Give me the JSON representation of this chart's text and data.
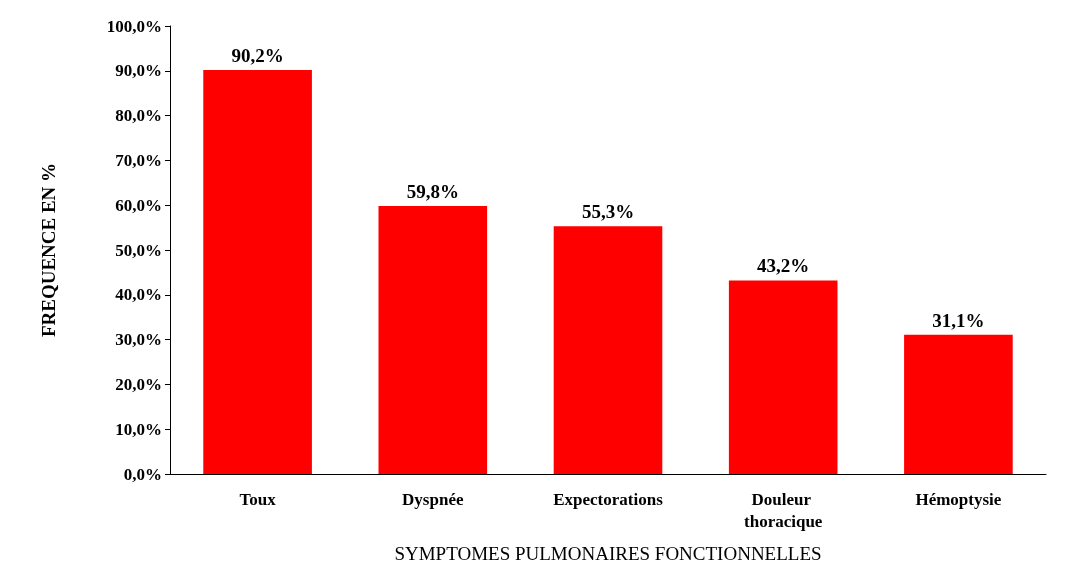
{
  "chart_data": {
    "type": "bar",
    "xlabel": "SYMPTOMES PULMONAIRES FONCTIONNELLES",
    "ylabel": "FREQUENCE EN %",
    "categories": [
      "Toux",
      "Dyspnée",
      "Expectorations",
      "Douleur thoracique",
      "Hémoptysie"
    ],
    "values": [
      90.2,
      59.8,
      55.3,
      43.2,
      31.1
    ],
    "value_labels": [
      "90,2%",
      "59,8%",
      "55,3%",
      "43,2%",
      "31,1%"
    ],
    "color": "#ff0000",
    "ylim": [
      0,
      100
    ],
    "yticks": [
      {
        "value": 0,
        "label": "0,0%"
      },
      {
        "value": 10,
        "label": "10,0%"
      },
      {
        "value": 20,
        "label": "20,0%"
      },
      {
        "value": 30,
        "label": "30,0%"
      },
      {
        "value": 40,
        "label": "40,0%"
      },
      {
        "value": 50,
        "label": "50,0%"
      },
      {
        "value": 60,
        "label": "60,0%"
      },
      {
        "value": 70,
        "label": "70,0%"
      },
      {
        "value": 80,
        "label": "80,0%"
      },
      {
        "value": 90,
        "label": "90,0%"
      },
      {
        "value": 100,
        "label": "100,0%"
      }
    ],
    "grid": false
  }
}
